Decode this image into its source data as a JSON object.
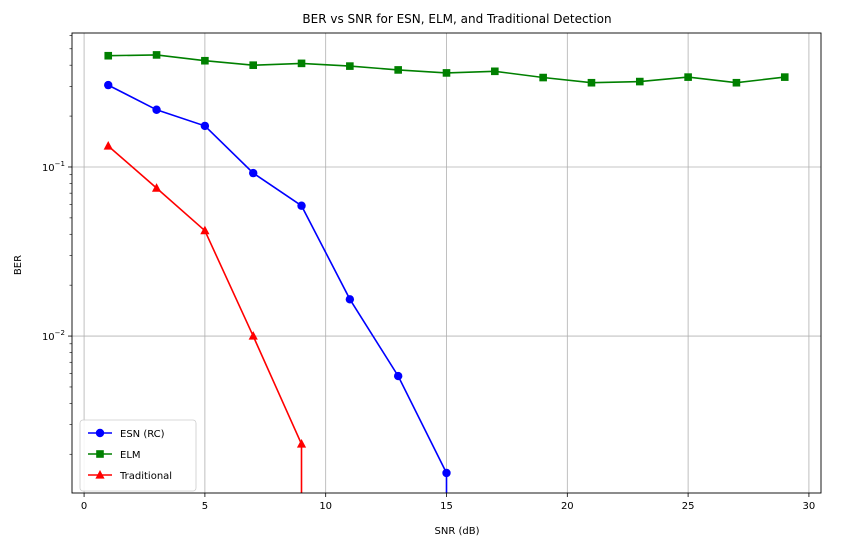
{
  "chart_data": {
    "type": "line",
    "title": "BER vs SNR for ESN, ELM, and Traditional Detection",
    "xlabel": "SNR (dB)",
    "ylabel": "BER",
    "xlim": [
      -0.5,
      30.5
    ],
    "ylim": [
      0.00118,
      0.62
    ],
    "yscale": "log",
    "grid": true,
    "legend_position": "lower-left",
    "x_ticks": [
      0,
      5,
      10,
      15,
      20,
      25,
      30
    ],
    "y_ticks": [
      0.01,
      0.1
    ],
    "series": [
      {
        "name": "ESN (RC)",
        "color": "#0000ff",
        "marker": "circle",
        "x": [
          1,
          3,
          5,
          7,
          9,
          11,
          13,
          15
        ],
        "y": [
          0.305,
          0.218,
          0.175,
          0.092,
          0.059,
          0.0165,
          0.0058,
          0.00155
        ],
        "drop_to_zero_at": 15
      },
      {
        "name": "ELM",
        "color": "#008000",
        "marker": "square",
        "x": [
          1,
          3,
          5,
          7,
          9,
          11,
          13,
          15,
          17,
          19,
          21,
          23,
          25,
          27,
          29
        ],
        "y": [
          0.455,
          0.46,
          0.425,
          0.4,
          0.41,
          0.395,
          0.375,
          0.36,
          0.368,
          0.338,
          0.315,
          0.32,
          0.34,
          0.315,
          0.34
        ]
      },
      {
        "name": "Traditional",
        "color": "#ff0000",
        "marker": "triangle",
        "x": [
          1,
          3,
          5,
          7,
          9
        ],
        "y": [
          0.133,
          0.075,
          0.042,
          0.01,
          0.0023
        ],
        "drop_to_zero_at": 9
      }
    ]
  }
}
